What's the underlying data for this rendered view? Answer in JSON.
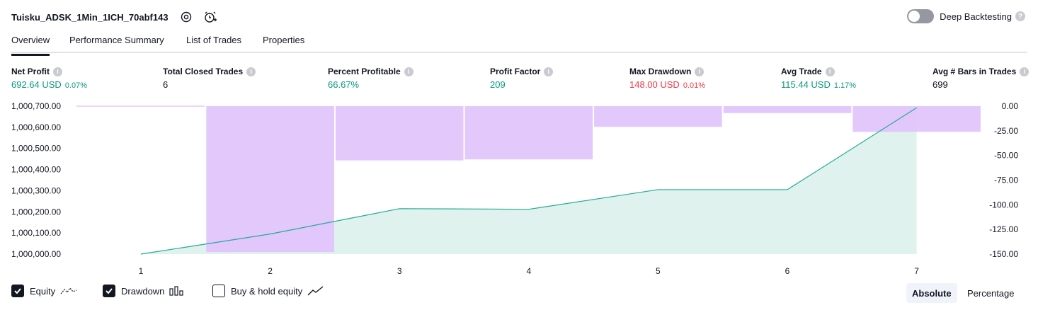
{
  "header": {
    "title": "Tuisku_ADSK_1Min_1ICH_70abf143",
    "deep_backtesting_label": "Deep Backtesting",
    "help_glyph": "?"
  },
  "tabs": [
    "Overview",
    "Performance Summary",
    "List of Trades",
    "Properties"
  ],
  "metrics": {
    "net_profit": {
      "label": "Net Profit",
      "value": "692.64 USD",
      "pct": "0.07%"
    },
    "total_closed_trades": {
      "label": "Total Closed Trades",
      "value": "6"
    },
    "percent_profitable": {
      "label": "Percent Profitable",
      "value": "66.67%"
    },
    "profit_factor": {
      "label": "Profit Factor",
      "value": "209"
    },
    "max_drawdown": {
      "label": "Max Drawdown",
      "value": "148.00 USD",
      "pct": "0.01%"
    },
    "avg_trade": {
      "label": "Avg Trade",
      "value": "115.44 USD",
      "pct": "1.17%"
    },
    "avg_bars": {
      "label": "Avg # Bars in Trades",
      "value": "699"
    }
  },
  "legend": {
    "equity": "Equity",
    "drawdown": "Drawdown",
    "buy_hold": "Buy & hold equity",
    "equity_checked": true,
    "drawdown_checked": true,
    "buy_hold_checked": false
  },
  "mode": {
    "absolute": "Absolute",
    "percentage": "Percentage"
  },
  "colors": {
    "equity_line": "#22ab94",
    "equity_fill": "#dff2ed",
    "drawdown": "#e1c3fc",
    "drawdown_zero": "#e9a8e6",
    "green": "#089981",
    "red": "#f23645"
  },
  "chart_data": {
    "type": "line",
    "x": [
      1,
      2,
      3,
      4,
      5,
      6,
      7
    ],
    "series": [
      {
        "name": "Equity",
        "axis": "left",
        "values": [
          1000000.0,
          1000095.0,
          1000215.0,
          1000212.0,
          1000305.0,
          1000305.0,
          1000692.64
        ]
      },
      {
        "name": "Drawdown",
        "axis": "right",
        "type": "bar",
        "values": [
          0,
          -148,
          -55,
          -54,
          -21,
          -7,
          -26
        ]
      }
    ],
    "left_ticks": [
      "1,000,700.00",
      "1,000,600.00",
      "1,000,500.00",
      "1,000,400.00",
      "1,000,300.00",
      "1,000,200.00",
      "1,000,100.00",
      "1,000,000.00"
    ],
    "right_ticks": [
      "0.00",
      "-25.00",
      "-50.00",
      "-75.00",
      "-100.00",
      "-125.00",
      "-150.00"
    ],
    "x_ticks": [
      "1",
      "2",
      "3",
      "4",
      "5",
      "6",
      "7"
    ],
    "ylim_left": [
      1000000,
      1000700
    ],
    "ylim_right": [
      -150,
      0
    ]
  }
}
